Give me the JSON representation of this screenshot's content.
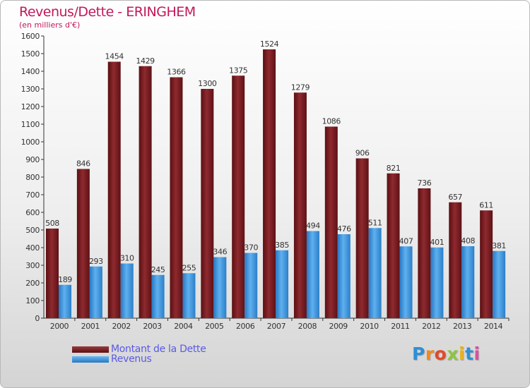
{
  "header": {
    "title": "Revenus/Dette - ERINGHEM",
    "subtitle": "(en milliers d'€)"
  },
  "legend": {
    "items": [
      {
        "label": "Montant de la Dette",
        "color": "#7a1a1f"
      },
      {
        "label": "Revenus",
        "color": "#3a97e0"
      }
    ]
  },
  "logo": {
    "text": "Proxiti",
    "colors": [
      "#2e8fd6",
      "#f08a1a",
      "#e04a2a",
      "#8cc63f",
      "#e8b21a",
      "#2e8fd6",
      "#d94fa0"
    ]
  },
  "chart_data": {
    "type": "bar",
    "categories": [
      "2000",
      "2001",
      "2002",
      "2003",
      "2004",
      "2005",
      "2006",
      "2007",
      "2008",
      "2009",
      "2010",
      "2011",
      "2012",
      "2013",
      "2014"
    ],
    "series": [
      {
        "name": "Montant de la Dette",
        "color": "#7a1a1f",
        "values": [
          508,
          846,
          1454,
          1429,
          1366,
          1300,
          1375,
          1524,
          1279,
          1086,
          906,
          821,
          736,
          657,
          611
        ]
      },
      {
        "name": "Revenus",
        "color": "#3a97e0",
        "values": [
          189,
          293,
          310,
          245,
          255,
          346,
          370,
          385,
          494,
          476,
          511,
          407,
          401,
          408,
          381
        ]
      }
    ],
    "ylim": [
      0,
      1600
    ],
    "yticks": [
      0,
      100,
      200,
      300,
      400,
      500,
      600,
      700,
      800,
      900,
      1000,
      1100,
      1200,
      1300,
      1400,
      1500,
      1600
    ],
    "grid": false
  }
}
